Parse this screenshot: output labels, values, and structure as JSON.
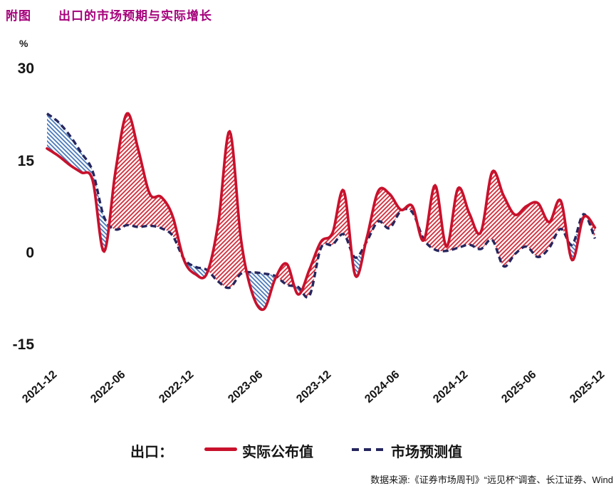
{
  "title": {
    "prefix": "附图",
    "text": "出口的市场预期与实际增长"
  },
  "unit": "%",
  "legend": {
    "group_label": "出口：",
    "actual_label": "实际公布值",
    "forecast_label": "市场预测值"
  },
  "source": "数据来源:《证券市场周刊》“远见杯”调查、长江证券、Wind",
  "colors": {
    "title": "#A5007B",
    "actual_line": "#C8112C",
    "forecast_line": "#26265E",
    "red_hatch": "#D43341",
    "blue_hatch": "#4A79BC",
    "text": "#141414"
  },
  "chart_data": {
    "type": "line",
    "title": "出口的市场预期与实际增长",
    "ylabel": "%",
    "ylim": [
      -17,
      32
    ],
    "yticks": [
      30,
      15,
      0,
      -15
    ],
    "xticks": [
      "2021-12",
      "2022-06",
      "2022-12",
      "2023-06",
      "2023-12",
      "2024-06",
      "2024-12",
      "2025-06",
      "2025-12"
    ],
    "grid": false,
    "legend_position": "bottom",
    "fill_note": "red diagonal hatch where actual > forecast, blue diagonal hatch where forecast > actual",
    "x": [
      "2021-12",
      "2022-01",
      "2022-02",
      "2022-03",
      "2022-04",
      "2022-05",
      "2022-06",
      "2022-07",
      "2022-08",
      "2022-09",
      "2022-10",
      "2022-11",
      "2022-12",
      "2023-01",
      "2023-02",
      "2023-03",
      "2023-04",
      "2023-05",
      "2023-06",
      "2023-07",
      "2023-08",
      "2023-09",
      "2023-10",
      "2023-11",
      "2023-12",
      "2024-01",
      "2024-02",
      "2024-03",
      "2024-04",
      "2024-05",
      "2024-06",
      "2024-07",
      "2024-08",
      "2024-09",
      "2024-10",
      "2024-11",
      "2024-12",
      "2025-01",
      "2025-02",
      "2025-03",
      "2025-04",
      "2025-05",
      "2025-06",
      "2025-07",
      "2025-08",
      "2025-09",
      "2025-10",
      "2025-11",
      "2025-12"
    ],
    "series": [
      {
        "name": "实际公布值",
        "style": "solid",
        "color": "#C8112C",
        "values": [
          17.2,
          16.0,
          14.5,
          13.3,
          12.0,
          0.4,
          13.5,
          22.9,
          17.0,
          9.8,
          9.3,
          6.2,
          -1.0,
          -3.3,
          -3.2,
          5.0,
          20.0,
          2.3,
          -6.5,
          -9.0,
          -4.0,
          -1.6,
          -6.6,
          -2.5,
          2.0,
          3.4,
          10.3,
          -3.5,
          2.5,
          10.2,
          9.8,
          7.2,
          7.8,
          2.2,
          11.2,
          1.2,
          10.7,
          6.6,
          3.5,
          13.4,
          9.5,
          6.4,
          7.8,
          8.3,
          5.2,
          8.7,
          -1.0,
          6.0,
          4.3
        ]
      },
      {
        "name": "市场预测值",
        "style": "dashed",
        "color": "#26265E",
        "values": [
          22.9,
          21.5,
          19.3,
          16.5,
          13.5,
          6.0,
          4.0,
          4.7,
          4.4,
          4.6,
          4.2,
          3.0,
          -0.8,
          -2.1,
          -2.6,
          -4.5,
          -5.5,
          -3.2,
          -3.0,
          -3.2,
          -3.6,
          -5.0,
          -5.4,
          -6.8,
          1.0,
          1.5,
          3.2,
          -0.6,
          2.0,
          5.3,
          4.2,
          7.0,
          6.8,
          2.4,
          0.7,
          0.5,
          1.0,
          1.5,
          0.8,
          2.3,
          -2.0,
          0.0,
          1.2,
          -0.5,
          1.0,
          4.1,
          1.5,
          6.5,
          2.5
        ]
      }
    ]
  }
}
